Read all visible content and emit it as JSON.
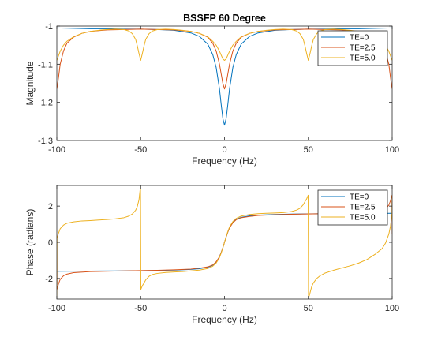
{
  "chart_data": [
    {
      "type": "line",
      "title": "BSSFP 60 Degree",
      "xlabel": "Frequency (Hz)",
      "ylabel": "Magnitude",
      "xlim": [
        -100,
        100
      ],
      "ylim": [
        -1.3,
        -1.0
      ],
      "xticks": [
        -100,
        -50,
        0,
        50,
        100
      ],
      "xtick_labels": [
        "-100",
        "-50",
        "0",
        "50",
        "100"
      ],
      "yticks": [
        -1.3,
        -1.2,
        -1.1,
        -1.0
      ],
      "ytick_labels": [
        "-1.3",
        "-1.2",
        "-1.1",
        "-1"
      ],
      "grid": false,
      "legend": "top-right",
      "series": [
        {
          "name": "TE=0",
          "color": "#0072bd",
          "x": [
            -100,
            -90,
            -80,
            -70,
            -60,
            -50,
            -40,
            -30,
            -20,
            -15,
            -10,
            -7,
            -5,
            -3,
            -2,
            -1,
            0,
            1,
            2,
            3,
            5,
            7,
            10,
            15,
            20,
            30,
            40,
            50,
            60,
            70,
            80,
            90,
            100
          ],
          "y": [
            -1.005,
            -1.006,
            -1.007,
            -1.007,
            -1.008,
            -1.008,
            -1.009,
            -1.011,
            -1.018,
            -1.027,
            -1.047,
            -1.075,
            -1.108,
            -1.165,
            -1.205,
            -1.242,
            -1.26,
            -1.242,
            -1.205,
            -1.165,
            -1.108,
            -1.075,
            -1.047,
            -1.027,
            -1.018,
            -1.011,
            -1.009,
            -1.008,
            -1.008,
            -1.007,
            -1.007,
            -1.006,
            -1.005
          ]
        },
        {
          "name": "TE=2.5",
          "color": "#d95319",
          "x": [
            -100,
            -99,
            -98,
            -96,
            -94,
            -90,
            -85,
            -80,
            -70,
            -60,
            -50,
            -40,
            -30,
            -20,
            -15,
            -10,
            -7,
            -5,
            -3,
            -2,
            -1,
            0,
            1,
            2,
            3,
            5,
            7,
            10,
            15,
            20,
            30,
            40,
            50,
            60,
            70,
            80,
            85,
            90,
            94,
            96,
            98,
            99,
            100
          ],
          "y": [
            -1.165,
            -1.135,
            -1.1,
            -1.065,
            -1.045,
            -1.029,
            -1.019,
            -1.014,
            -1.01,
            -1.009,
            -1.008,
            -1.009,
            -1.01,
            -1.014,
            -1.019,
            -1.029,
            -1.045,
            -1.065,
            -1.1,
            -1.125,
            -1.15,
            -1.165,
            -1.15,
            -1.125,
            -1.1,
            -1.065,
            -1.045,
            -1.029,
            -1.019,
            -1.014,
            -1.01,
            -1.009,
            -1.008,
            -1.009,
            -1.01,
            -1.014,
            -1.019,
            -1.029,
            -1.045,
            -1.065,
            -1.1,
            -1.135,
            -1.165
          ]
        },
        {
          "name": "TE=5.0",
          "color": "#edb120",
          "x": [
            -100,
            -99,
            -98,
            -96,
            -94,
            -90,
            -85,
            -80,
            -75,
            -70,
            -65,
            -60,
            -57,
            -55,
            -53,
            -52,
            -51,
            -50,
            -49,
            -48,
            -47,
            -45,
            -43,
            -40,
            -35,
            -30,
            -25,
            -20,
            -15,
            -10,
            -7,
            -5,
            -3,
            -2,
            -1,
            0,
            1,
            2,
            3,
            5,
            7,
            10,
            15,
            20,
            25,
            30,
            35,
            40,
            43,
            45,
            47,
            48,
            49,
            50,
            51,
            52,
            53,
            55,
            57,
            60,
            65,
            70,
            75,
            80,
            85,
            90,
            94,
            96,
            98,
            99,
            100
          ],
          "y": [
            -1.09,
            -1.078,
            -1.066,
            -1.05,
            -1.04,
            -1.028,
            -1.019,
            -1.014,
            -1.011,
            -1.009,
            -1.008,
            -1.009,
            -1.013,
            -1.02,
            -1.035,
            -1.052,
            -1.072,
            -1.09,
            -1.072,
            -1.052,
            -1.035,
            -1.02,
            -1.013,
            -1.009,
            -1.008,
            -1.009,
            -1.011,
            -1.014,
            -1.019,
            -1.028,
            -1.04,
            -1.05,
            -1.066,
            -1.076,
            -1.086,
            -1.09,
            -1.086,
            -1.076,
            -1.066,
            -1.05,
            -1.04,
            -1.028,
            -1.019,
            -1.014,
            -1.011,
            -1.009,
            -1.008,
            -1.009,
            -1.013,
            -1.02,
            -1.035,
            -1.052,
            -1.072,
            -1.09,
            -1.072,
            -1.052,
            -1.035,
            -1.02,
            -1.013,
            -1.009,
            -1.008,
            -1.009,
            -1.011,
            -1.014,
            -1.019,
            -1.028,
            -1.04,
            -1.05,
            -1.066,
            -1.078,
            -1.09
          ]
        }
      ]
    },
    {
      "type": "line",
      "xlabel": "Frequency (Hz)",
      "ylabel": "Phase (radians)",
      "xlim": [
        -100,
        100
      ],
      "ylim": [
        -3.14,
        3.14
      ],
      "xticks": [
        -100,
        -50,
        0,
        50,
        100
      ],
      "xtick_labels": [
        "-100",
        "-50",
        "0",
        "50",
        "100"
      ],
      "yticks": [
        -2,
        0,
        2
      ],
      "ytick_labels": [
        "-2",
        "0",
        "2"
      ],
      "grid": false,
      "legend": "top-right",
      "series": [
        {
          "name": "TE=0",
          "color": "#0072bd",
          "x": [
            -100,
            -80,
            -60,
            -40,
            -30,
            -20,
            -15,
            -10,
            -7,
            -5,
            -3,
            -2,
            -1,
            0,
            1,
            2,
            3,
            5,
            7,
            10,
            15,
            20,
            30,
            40,
            60,
            80,
            100
          ],
          "y": [
            -1.6,
            -1.59,
            -1.58,
            -1.56,
            -1.54,
            -1.5,
            -1.46,
            -1.38,
            -1.27,
            -1.1,
            -0.8,
            -0.57,
            -0.3,
            0,
            0.3,
            0.57,
            0.8,
            1.1,
            1.27,
            1.38,
            1.46,
            1.5,
            1.54,
            1.56,
            1.58,
            1.59,
            1.6
          ]
        },
        {
          "name": "TE=2.5",
          "color": "#d95319",
          "x": [
            -100,
            -99.9,
            -99,
            -98,
            -96,
            -94,
            -90,
            -80,
            -60,
            -40,
            -30,
            -20,
            -15,
            -10,
            -7,
            -5,
            -3,
            -2,
            -1,
            0,
            1,
            2,
            3,
            5,
            7,
            10,
            15,
            20,
            30,
            40,
            60,
            80,
            90,
            94,
            96,
            98,
            99,
            99.9,
            100
          ],
          "y": [
            0.45,
            -2.6,
            -2.3,
            -2.05,
            -1.85,
            -1.76,
            -1.68,
            -1.62,
            -1.58,
            -1.55,
            -1.52,
            -1.48,
            -1.43,
            -1.36,
            -1.25,
            -1.08,
            -0.8,
            -0.57,
            -0.3,
            0,
            0.3,
            0.57,
            0.8,
            1.08,
            1.25,
            1.36,
            1.43,
            1.48,
            1.52,
            1.55,
            1.58,
            1.62,
            1.68,
            1.76,
            1.85,
            2.05,
            2.3,
            2.6,
            0.45
          ]
        },
        {
          "name": "TE=5.0",
          "color": "#edb120",
          "x": [
            -100,
            -99.9,
            -99,
            -98,
            -96,
            -94,
            -90,
            -85,
            -80,
            -75,
            -70,
            -65,
            -60,
            -57,
            -55,
            -53,
            -52,
            -51,
            -50.1,
            -49.9,
            -49,
            -48,
            -47,
            -45,
            -43,
            -40,
            -35,
            -30,
            -25,
            -20,
            -15,
            -10,
            -7,
            -5,
            -3,
            -2,
            -1,
            0,
            1,
            2,
            3,
            5,
            7,
            10,
            15,
            20,
            25,
            30,
            35,
            40,
            43,
            45,
            47,
            48,
            49,
            49.9,
            50.1,
            51,
            52,
            53,
            55,
            57,
            60,
            65,
            70,
            75,
            80,
            85,
            90,
            94,
            96,
            98,
            99,
            99.9,
            100
          ],
          "y": [
            -3.1,
            0.2,
            0.5,
            0.75,
            0.95,
            1.05,
            1.13,
            1.18,
            1.2,
            1.23,
            1.26,
            1.3,
            1.36,
            1.45,
            1.56,
            1.77,
            1.98,
            2.35,
            3.1,
            -2.6,
            -2.4,
            -2.25,
            -2.08,
            -1.88,
            -1.78,
            -1.72,
            -1.67,
            -1.64,
            -1.62,
            -1.58,
            -1.54,
            -1.45,
            -1.32,
            -1.15,
            -0.85,
            -0.6,
            -0.32,
            0,
            0.32,
            0.6,
            0.85,
            1.15,
            1.32,
            1.45,
            1.54,
            1.58,
            1.6,
            1.62,
            1.64,
            1.7,
            1.78,
            1.88,
            2.08,
            2.25,
            2.4,
            2.6,
            -3.1,
            -2.8,
            -2.45,
            -2.25,
            -2.0,
            -1.85,
            -1.7,
            -1.55,
            -1.42,
            -1.3,
            -1.15,
            -0.95,
            -0.65,
            -0.35,
            -0.05,
            0.45,
            0.9,
            1.6,
            2.6
          ]
        }
      ]
    }
  ]
}
